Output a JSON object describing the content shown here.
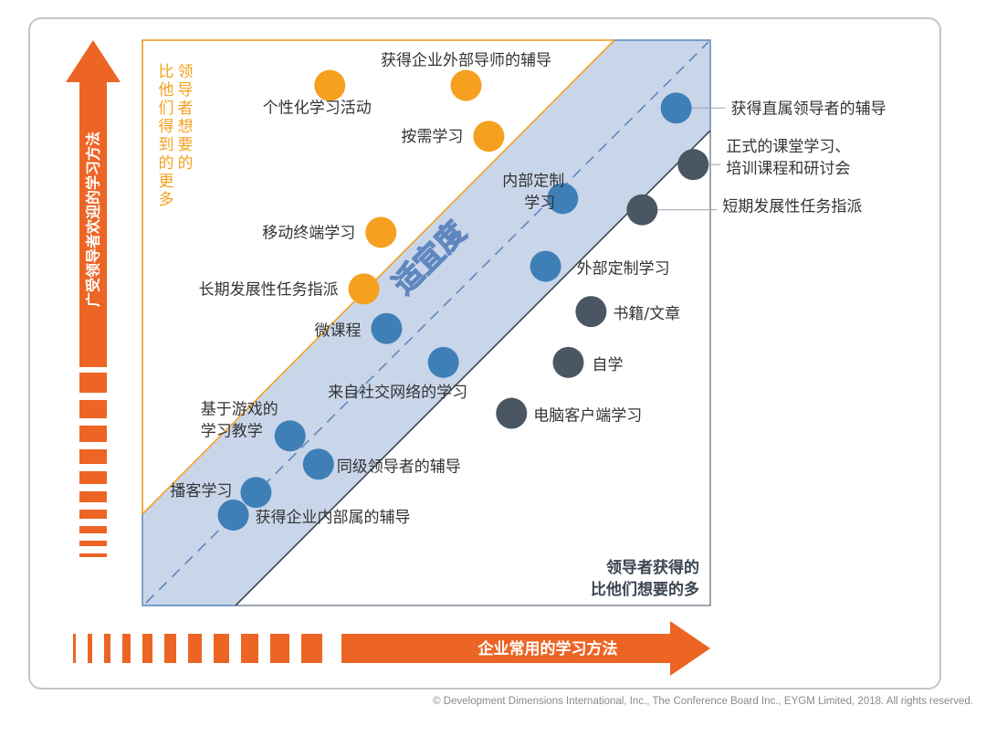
{
  "chart_data": {
    "type": "scatter",
    "xlabel": "企业常用的学习方法",
    "ylabel": "广受领导者欢迎的学习方法",
    "band_label": "适宜度",
    "region_top_left_label": "比他们得到的更多",
    "region_top_left_chars": [
      "比",
      "他",
      "们",
      "得",
      "到",
      "的",
      "更",
      "多"
    ],
    "region_top_left_chars_col2": [
      "领",
      "导",
      "者",
      "想",
      "要",
      "的"
    ],
    "region_bottom_right_label": [
      "领导者获得的",
      "比他们想要的多"
    ],
    "xlim": [
      0,
      100
    ],
    "ylim": [
      0,
      100
    ],
    "series": [
      {
        "category": "above",
        "color": "#f5a01f",
        "points": [
          {
            "label": [
              "个性化学习活动"
            ],
            "x": 33,
            "y": 92
          },
          {
            "label": [
              "获得企业外部导师的辅导"
            ],
            "x": 57,
            "y": 92
          },
          {
            "label": [
              "按需学习"
            ],
            "x": 61,
            "y": 83
          },
          {
            "label": [
              "移动终端学习"
            ],
            "x": 42,
            "y": 66
          },
          {
            "label": [
              "长期发展性任务指派"
            ],
            "x": 39,
            "y": 56
          }
        ]
      },
      {
        "category": "within",
        "color": "#3f7fb7",
        "points": [
          {
            "label": [
              "获得直属领导者的辅导"
            ],
            "x": 94,
            "y": 88
          },
          {
            "label": [
              "内部定制",
              "学习"
            ],
            "x": 74,
            "y": 72
          },
          {
            "label": [
              "外部定制学习"
            ],
            "x": 71,
            "y": 60
          },
          {
            "label": [
              "微课程"
            ],
            "x": 43,
            "y": 49
          },
          {
            "label": [
              "来自社交网络的学习"
            ],
            "x": 53,
            "y": 43
          },
          {
            "label": [
              "基于游戏的",
              "学习教学"
            ],
            "x": 26,
            "y": 30
          },
          {
            "label": [
              "同级领导者的辅导"
            ],
            "x": 31,
            "y": 25
          },
          {
            "label": [
              "播客学习"
            ],
            "x": 20,
            "y": 20
          },
          {
            "label": [
              "获得企业内部属的辅导"
            ],
            "x": 16,
            "y": 16
          }
        ]
      },
      {
        "category": "below",
        "color": "#4b5663",
        "points": [
          {
            "label": [
              "正式的课堂学习、",
              "培训课程和研讨会"
            ],
            "x": 97,
            "y": 78
          },
          {
            "label": [
              "短期发展性任务指派"
            ],
            "x": 88,
            "y": 70
          },
          {
            "label": [
              "书籍/文章"
            ],
            "x": 79,
            "y": 52
          },
          {
            "label": [
              "自学"
            ],
            "x": 75,
            "y": 43
          },
          {
            "label": [
              "电脑客户端学习"
            ],
            "x": 65,
            "y": 34
          }
        ]
      }
    ]
  },
  "copyright": "© Development Dimensions International, Inc., The Conference Board Inc., EYGM Limited, 2018. All rights reserved.",
  "colors": {
    "orange_arrow": "#ec6525",
    "band_fill": "#c9d6ea",
    "band_edge": "#5f87bf",
    "orange_line": "#f5a01f",
    "dark_line": "#3c4652"
  }
}
